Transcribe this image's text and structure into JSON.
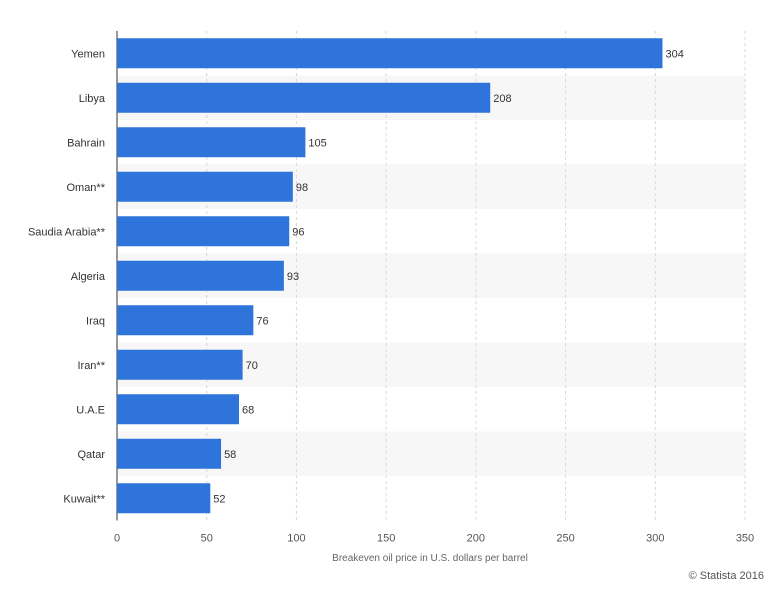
{
  "chart_data": {
    "type": "bar",
    "orientation": "horizontal",
    "categories": [
      "Yemen",
      "Libya",
      "Bahrain",
      "Oman**",
      "Saudia Arabia**",
      "Algeria",
      "Iraq",
      "Iran**",
      "U.A.E",
      "Qatar",
      "Kuwait**"
    ],
    "values": [
      304,
      208,
      105,
      98,
      96,
      93,
      76,
      70,
      68,
      58,
      52
    ],
    "value_labels": [
      "304",
      "208",
      "105",
      "98",
      "96",
      "93",
      "76",
      "70",
      "68",
      "58",
      "52"
    ],
    "xlabel": "Breakeven oil price in U.S. dollars per barrel",
    "xlim": [
      0,
      350
    ],
    "xticks": [
      0,
      50,
      100,
      150,
      200,
      250,
      300,
      350
    ],
    "xtick_labels": [
      "0",
      "50",
      "100",
      "150",
      "200",
      "250",
      "300",
      "350"
    ],
    "grid": true,
    "bar_color": "#2f74da"
  },
  "credit": "© Statista 2016"
}
